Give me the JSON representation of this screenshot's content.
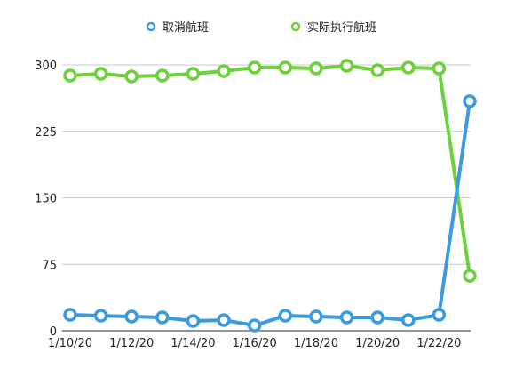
{
  "chart_data": {
    "type": "line",
    "title": "",
    "xlabel": "",
    "ylabel": "",
    "x": [
      "1/10/20",
      "1/11/20",
      "1/12/20",
      "1/13/20",
      "1/14/20",
      "1/15/20",
      "1/16/20",
      "1/17/20",
      "1/18/20",
      "1/19/20",
      "1/20/20",
      "1/21/20",
      "1/22/20",
      "1/23/20"
    ],
    "x_tick_labels": [
      "1/10/20",
      "1/12/20",
      "1/14/20",
      "1/16/20",
      "1/18/20",
      "1/20/20",
      "1/22/20"
    ],
    "ylim": [
      0,
      300
    ],
    "y_ticks": [
      0,
      75,
      150,
      225,
      300
    ],
    "grid": true,
    "legend_position": "top-center",
    "series": [
      {
        "name": "取消航班",
        "color": "#3b9be0",
        "values": [
          18,
          17,
          16,
          15,
          11,
          12,
          6,
          17,
          16,
          15,
          15,
          12,
          18,
          259
        ]
      },
      {
        "name": "实际执行航班",
        "color": "#6cd13a",
        "values": [
          288,
          290,
          287,
          288,
          290,
          293,
          297,
          297,
          296,
          299,
          294,
          297,
          296,
          62
        ]
      }
    ]
  }
}
